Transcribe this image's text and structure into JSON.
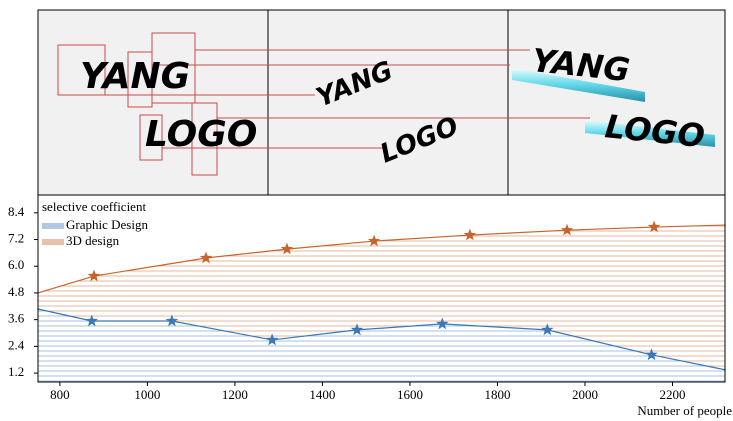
{
  "panels": [
    {
      "texts": [
        "YANG",
        "LOGO"
      ]
    },
    {
      "texts": [
        "YANG",
        "LOGO"
      ]
    },
    {
      "texts": [
        "YANG",
        "LOGO"
      ]
    }
  ],
  "chart_data": {
    "type": "line",
    "legend_title": "selective coefficient",
    "x_label": "Number of people",
    "xlim": [
      750,
      2320
    ],
    "xticks": [
      800,
      1000,
      1200,
      1400,
      1600,
      1800,
      2000,
      2200
    ],
    "ylim": [
      0.8,
      9.2
    ],
    "yticks": [
      1.2,
      2.4,
      3.6,
      4.8,
      {
        "value": 6,
        "label": "6.0"
      },
      7.2,
      8.4
    ],
    "series": [
      {
        "name": "Graphic Design",
        "color": "#3a78b8",
        "x": [
          750,
          873,
          1056,
          1285,
          1479,
          1674,
          1914,
          2152,
          2320
        ],
        "values": [
          4.08,
          3.54,
          3.54,
          2.69,
          3.14,
          3.41,
          3.14,
          2.02,
          1.35
        ]
      },
      {
        "name": "3D design",
        "color": "#c8642a",
        "x": [
          750,
          878,
          1134,
          1319,
          1518,
          1737,
          1959,
          2158,
          2320
        ],
        "values": [
          4.8,
          5.56,
          6.37,
          6.77,
          7.13,
          7.4,
          7.62,
          7.76,
          7.85
        ]
      }
    ]
  }
}
